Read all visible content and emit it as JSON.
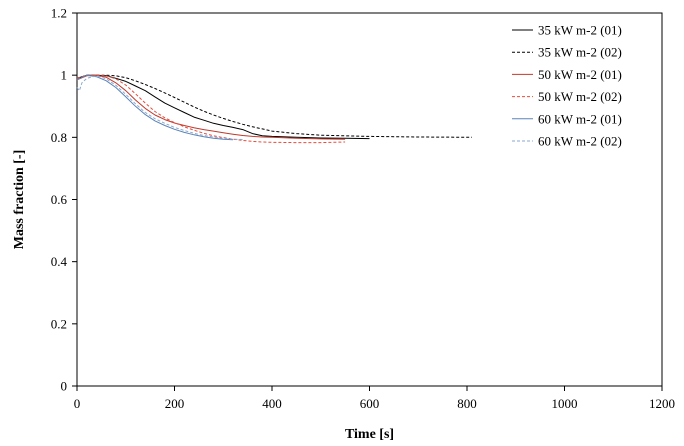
{
  "chart_data": {
    "type": "line",
    "title": "",
    "xlabel": "Time [s]",
    "ylabel": "Mass fraction [-]",
    "xlim": [
      0,
      1200
    ],
    "ylim": [
      0,
      1.2
    ],
    "xticks": [
      0,
      200,
      400,
      600,
      800,
      1000,
      1200
    ],
    "yticks": [
      0,
      0.2,
      0.4,
      0.6,
      0.8,
      1,
      1.2
    ],
    "xtick_labels": [
      "0",
      "200",
      "400",
      "600",
      "800",
      "1000",
      "1200"
    ],
    "ytick_labels": [
      "0",
      "0.2",
      "0.4",
      "0.6",
      "0.8",
      "1",
      "1.2"
    ],
    "legend_position": "top-right",
    "series": [
      {
        "name": "35 kW m-2 (01)",
        "color": "#000000",
        "dash": "solid",
        "x": [
          0,
          20,
          40,
          60,
          80,
          100,
          120,
          140,
          160,
          180,
          200,
          220,
          240,
          260,
          280,
          300,
          320,
          340,
          360,
          380,
          400,
          450,
          500,
          550,
          600
        ],
        "y": [
          0.99,
          1.0,
          1.0,
          0.998,
          0.99,
          0.98,
          0.965,
          0.95,
          0.93,
          0.91,
          0.895,
          0.88,
          0.865,
          0.855,
          0.845,
          0.838,
          0.832,
          0.825,
          0.812,
          0.805,
          0.803,
          0.8,
          0.798,
          0.797,
          0.796
        ]
      },
      {
        "name": "35 kW m-2 (02)",
        "color": "#000000",
        "dash": "dashed",
        "x": [
          0,
          20,
          40,
          60,
          80,
          100,
          120,
          140,
          160,
          180,
          200,
          220,
          240,
          260,
          280,
          300,
          320,
          340,
          360,
          380,
          400,
          450,
          500,
          600,
          700,
          810
        ],
        "y": [
          0.99,
          1.0,
          1.0,
          1.0,
          0.998,
          0.992,
          0.982,
          0.97,
          0.957,
          0.943,
          0.928,
          0.913,
          0.898,
          0.884,
          0.872,
          0.861,
          0.851,
          0.842,
          0.834,
          0.827,
          0.82,
          0.812,
          0.807,
          0.803,
          0.801,
          0.8
        ]
      },
      {
        "name": "50 kW m-2 (01)",
        "color": "#c0392b",
        "dash": "solid",
        "x": [
          0,
          20,
          40,
          60,
          80,
          100,
          120,
          140,
          160,
          180,
          200,
          220,
          240,
          260,
          280,
          300,
          320,
          340,
          360,
          380,
          400,
          450,
          500,
          550
        ],
        "y": [
          0.985,
          0.998,
          1.0,
          0.993,
          0.975,
          0.95,
          0.92,
          0.893,
          0.872,
          0.857,
          0.846,
          0.838,
          0.831,
          0.825,
          0.82,
          0.815,
          0.81,
          0.806,
          0.803,
          0.801,
          0.8,
          0.797,
          0.795,
          0.794
        ]
      },
      {
        "name": "50 kW m-2 (02)",
        "color": "#e74c3c",
        "dash": "dashed",
        "x": [
          0,
          20,
          40,
          60,
          80,
          100,
          120,
          140,
          160,
          180,
          200,
          220,
          240,
          260,
          280,
          300,
          320,
          340,
          360,
          380,
          400,
          450,
          500,
          550
        ],
        "y": [
          0.99,
          1.0,
          1.0,
          0.998,
          0.988,
          0.968,
          0.94,
          0.91,
          0.883,
          0.863,
          0.847,
          0.834,
          0.823,
          0.813,
          0.805,
          0.799,
          0.794,
          0.79,
          0.787,
          0.785,
          0.784,
          0.783,
          0.783,
          0.785
        ]
      },
      {
        "name": "60 kW m-2 (01)",
        "color": "#5b83b8",
        "dash": "solid",
        "x": [
          0,
          20,
          40,
          60,
          80,
          100,
          120,
          140,
          160,
          180,
          200,
          220,
          240,
          260,
          280,
          300,
          320
        ],
        "y": [
          0.985,
          1.0,
          0.995,
          0.982,
          0.96,
          0.93,
          0.9,
          0.873,
          0.853,
          0.838,
          0.826,
          0.816,
          0.808,
          0.802,
          0.797,
          0.794,
          0.792
        ]
      },
      {
        "name": "60 kW m-2 (02)",
        "color": "#8aaad0",
        "dash": "dashed",
        "x": [
          0,
          5,
          10,
          20,
          40,
          60,
          80,
          100,
          120,
          140,
          160,
          180,
          200,
          220,
          240,
          260,
          280,
          300,
          320,
          340
        ],
        "y": [
          0.96,
          0.95,
          0.975,
          0.99,
          0.998,
          0.988,
          0.967,
          0.938,
          0.908,
          0.88,
          0.86,
          0.845,
          0.832,
          0.822,
          0.813,
          0.806,
          0.801,
          0.797,
          0.794,
          0.793
        ]
      }
    ]
  }
}
